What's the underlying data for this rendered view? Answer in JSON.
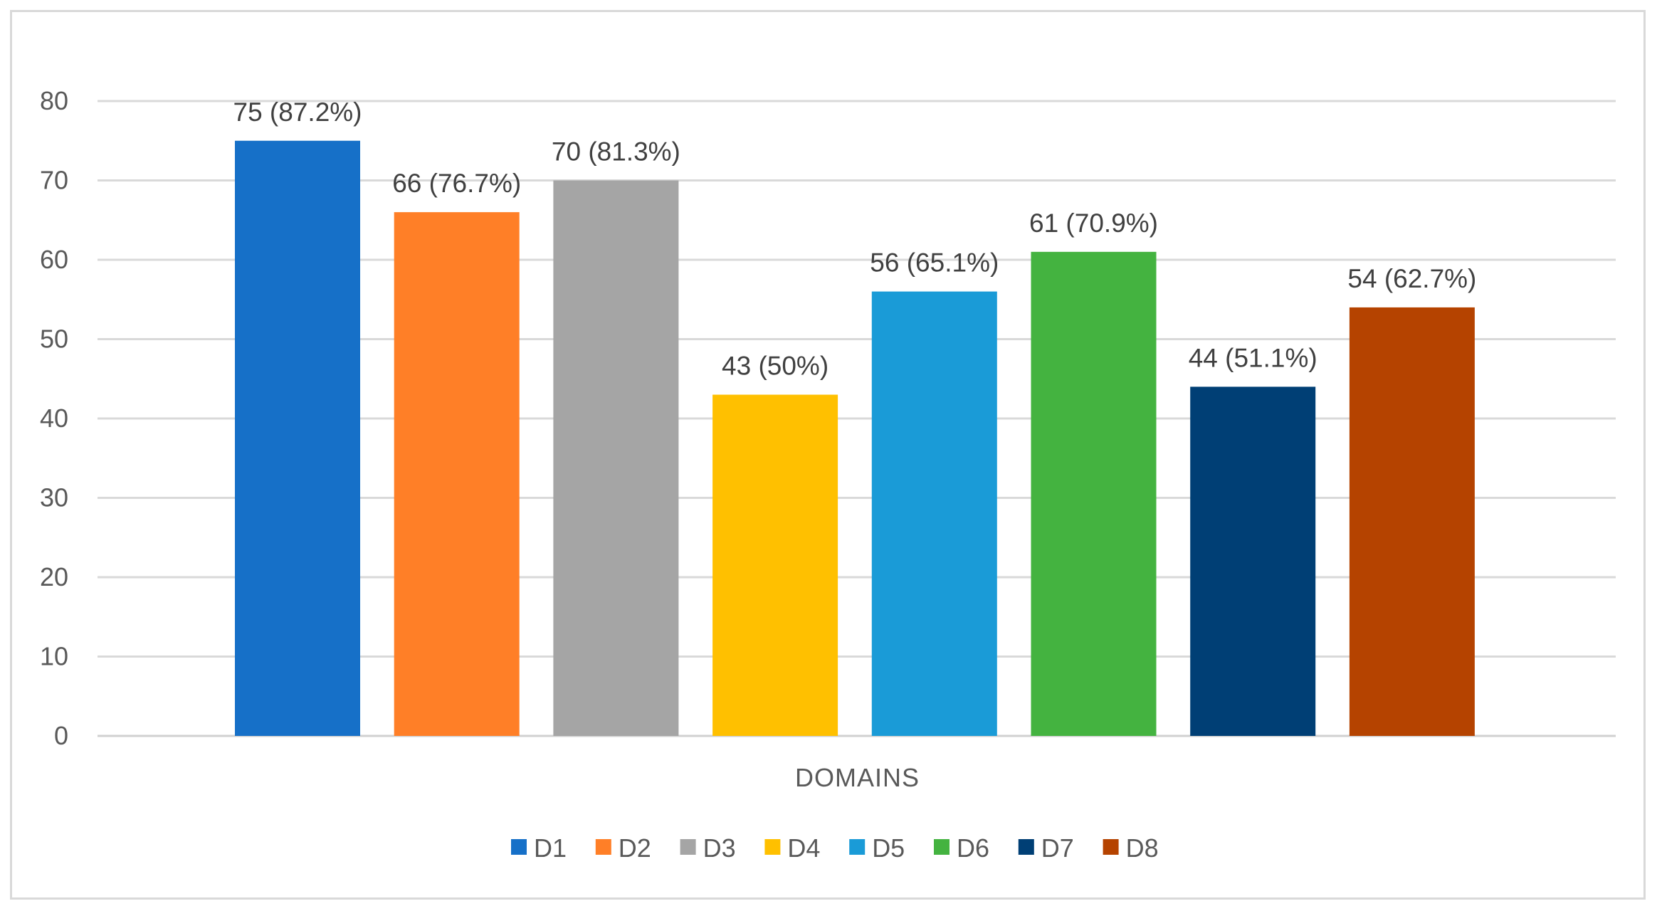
{
  "chart_data": {
    "type": "bar",
    "title": "",
    "xlabel": "DOMAINS",
    "ylabel": "",
    "ylim": [
      0,
      80
    ],
    "yticks": [
      0,
      10,
      20,
      30,
      40,
      50,
      60,
      70,
      80
    ],
    "grid": true,
    "legend_position": "bottom",
    "categories": [
      "D1",
      "D2",
      "D3",
      "D4",
      "D5",
      "D6",
      "D7",
      "D8"
    ],
    "values": [
      75,
      66,
      70,
      43,
      56,
      61,
      44,
      54
    ],
    "data_labels": [
      "75 (87.2%)",
      "66 (76.7%)",
      "70 (81.3%)",
      "43 (50%)",
      "56 (65.1%)",
      "61 (70.9%)",
      "44 (51.1%)",
      "54 (62.7%)"
    ],
    "colors": [
      "#1670C8",
      "#FF7F27",
      "#A5A5A5",
      "#FFC000",
      "#1A9BD7",
      "#44B340",
      "#003F75",
      "#B54300"
    ]
  }
}
